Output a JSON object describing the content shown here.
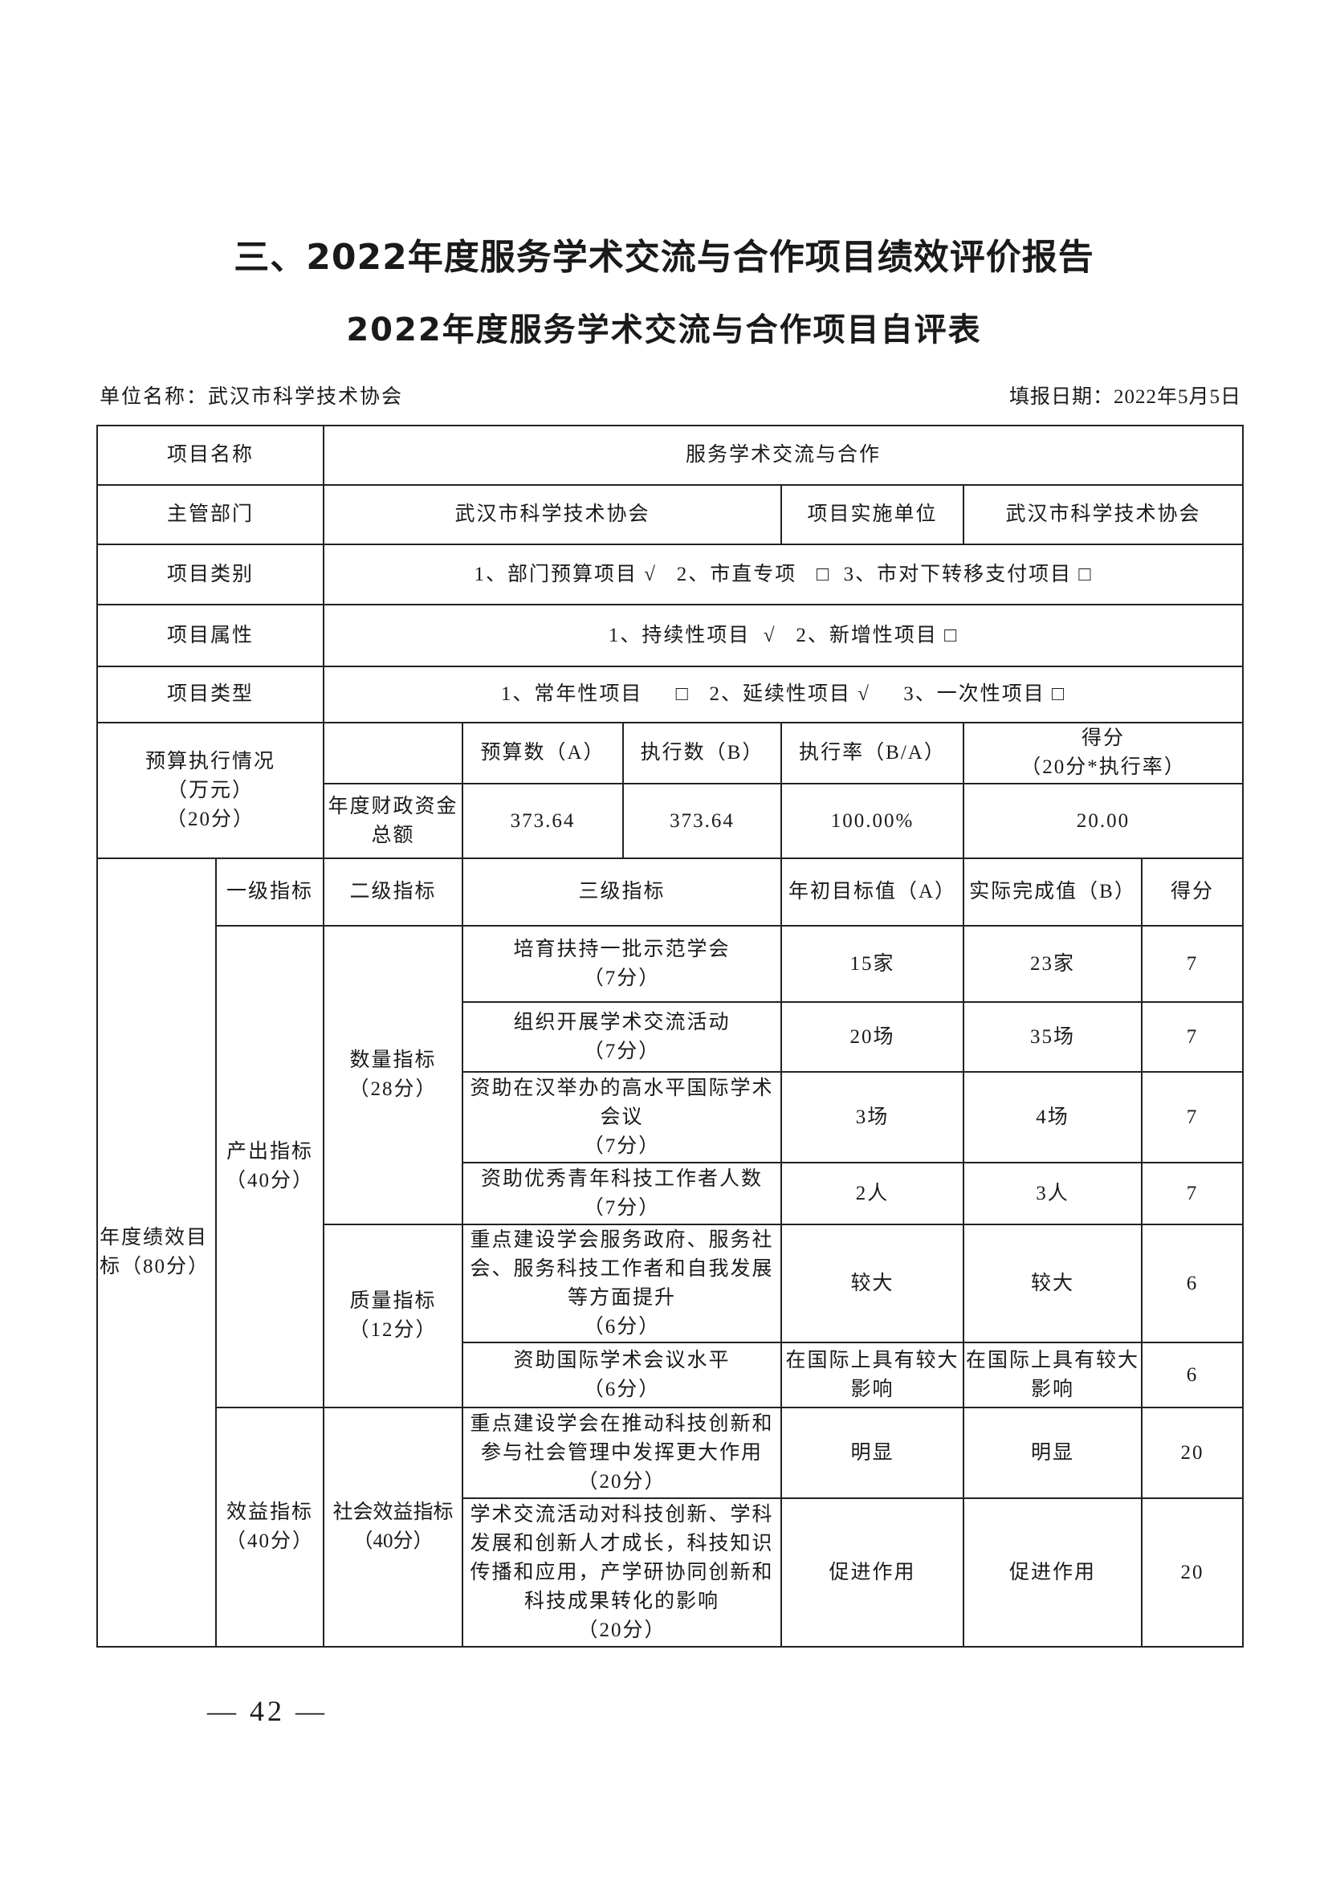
{
  "title": "三、2022年度服务学术交流与合作项目绩效评价报告",
  "subtitle": "2022年度服务学术交流与合作项目自评表",
  "unit_label": "单位名称：武汉市科学技术协会",
  "date_label": "填报日期：2022年5月5日",
  "info": {
    "project_name_label": "项目名称",
    "project_name": "服务学术交流与合作",
    "dept_label": "主管部门",
    "dept": "武汉市科学技术协会",
    "impl_label": "项目实施单位",
    "impl": "武汉市科学技术协会",
    "category_label": "项目类别",
    "category": "1、部门预算项目 √   2、市直专项   □  3、市对下转移支付项目 □",
    "attribute_label": "项目属性",
    "attribute": "1、持续性项目  √   2、新增性项目 □",
    "type_label": "项目类型",
    "type": "1、常年性项目     □   2、延续性项目 √     3、一次性项目 □"
  },
  "budget": {
    "label": "预算执行情况\n（万元）\n（20分）",
    "headers": [
      "预算数（A）",
      "执行数（B）",
      "执行率（B/A）",
      "得分\n（20分*执行率）"
    ],
    "row_label": "年度财政资金总额",
    "values": [
      "373.64",
      "373.64",
      "100.00%",
      "20.00"
    ]
  },
  "performance": {
    "label": "年度绩效目标（80分）",
    "headers": [
      "一级指标",
      "二级指标",
      "三级指标",
      "年初目标值（A）",
      "实际完成值（B）",
      "得分"
    ],
    "level1": [
      "产出指标\n（40分）",
      "效益指标\n（40分）"
    ],
    "level2": [
      "数量指标\n（28分）",
      "质量指标\n（12分）",
      "社会效益指标\n（40分）"
    ],
    "rows": [
      {
        "indicator": "培育扶持一批示范学会\n（7分）",
        "target": "15家",
        "actual": "23家",
        "score": "7"
      },
      {
        "indicator": "组织开展学术交流活动\n（7分）",
        "target": "20场",
        "actual": "35场",
        "score": "7"
      },
      {
        "indicator": "资助在汉举办的高水平国际学术会议\n（7分）",
        "target": "3场",
        "actual": "4场",
        "score": "7"
      },
      {
        "indicator": "资助优秀青年科技工作者人数\n（7分）",
        "target": "2人",
        "actual": "3人",
        "score": "7"
      },
      {
        "indicator": "重点建设学会服务政府、服务社会、服务科技工作者和自我发展等方面提升\n（6分）",
        "target": "较大",
        "actual": "较大",
        "score": "6"
      },
      {
        "indicator": "资助国际学术会议水平\n（6分）",
        "target": "在国际上具有较大影响",
        "actual": "在国际上具有较大影响",
        "score": "6"
      },
      {
        "indicator": "重点建设学会在推动科技创新和参与社会管理中发挥更大作用\n（20分）",
        "target": "明显",
        "actual": "明显",
        "score": "20"
      },
      {
        "indicator": "学术交流活动对科技创新、学科发展和创新人才成长，科技知识传播和应用，产学研协同创新和科技成果转化的影响\n（20分）",
        "target": "促进作用",
        "actual": "促进作用",
        "score": "20"
      }
    ]
  },
  "page_number": "— 42 —"
}
